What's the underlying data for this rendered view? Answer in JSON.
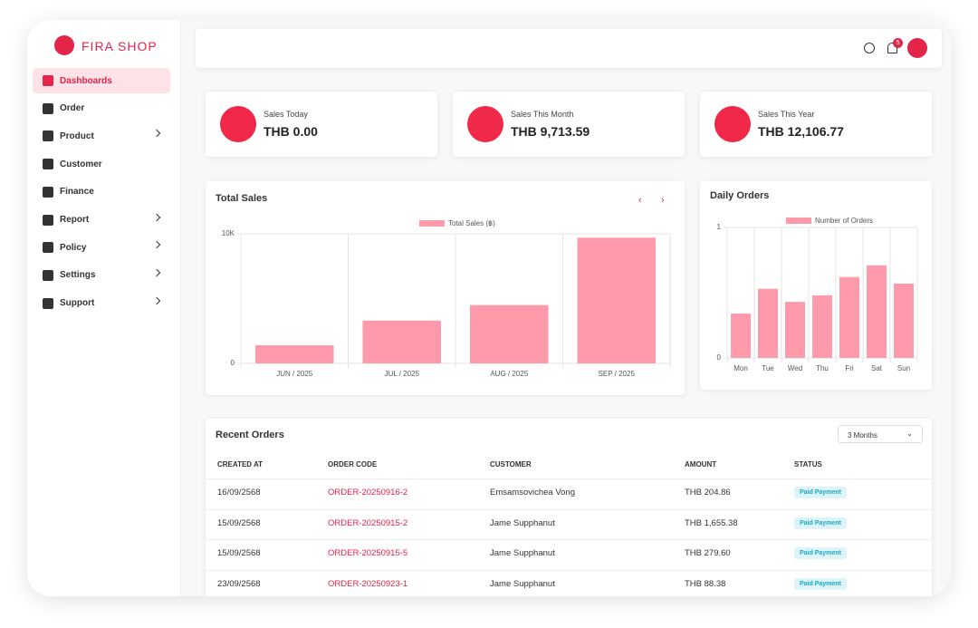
{
  "brand": "FIRA SHOP",
  "menu": [
    "Dashboards",
    "Order",
    "Product",
    "Customer",
    "Finance",
    "Report",
    "Policy",
    "Settings",
    "Support"
  ],
  "header": {
    "notification_count": "5"
  },
  "stats": [
    {
      "label": "Sales Today",
      "value": "THB 0.00"
    },
    {
      "label": "Sales This Month",
      "value": "THB 9,713.59"
    },
    {
      "label": "Sales This Year",
      "value": "THB 12,106.77"
    }
  ],
  "chart_data": [
    {
      "type": "bar",
      "title": "Total Sales",
      "categories": [
        "JUN / 2025",
        "JUL / 2025",
        "AUG / 2025",
        "SEP / 2025"
      ],
      "series": [
        {
          "name": "Total Sales (฿)",
          "color": "#ff9aaa",
          "values": [
            1400,
            3300,
            4500,
            9700
          ]
        }
      ],
      "ylim": [
        0,
        10000
      ],
      "yticks": [
        0,
        {
          "value": 10000,
          "label": "10K"
        }
      ],
      "grid": true
    },
    {
      "type": "bar",
      "title": "Daily Orders",
      "categories": [
        "Mon",
        "Tue",
        "Wed",
        "Thu",
        "Fri",
        "Sat",
        "Sun"
      ],
      "series": [
        {
          "name": "Number of Orders",
          "color": "#ff9aaa",
          "values": [
            0.34,
            0.53,
            0.43,
            0.48,
            0.62,
            0.71,
            0.57
          ]
        }
      ],
      "ylim": [
        0,
        1
      ],
      "yticks": [
        0,
        1
      ],
      "grid": true
    }
  ],
  "recent_orders": {
    "title": "Recent Orders",
    "filter": "3 Months",
    "columns": [
      "CREATED AT",
      "ORDER CODE",
      "CUSTOMER",
      "AMOUNT",
      "STATUS"
    ],
    "rows": [
      [
        "16/09/2568",
        "ORDER-20250916-2",
        "Emsamsovichea Vong",
        "THB 204.86",
        "Paid Payment"
      ],
      [
        "15/09/2568",
        "ORDER-20250915-2",
        "Jame Supphanut",
        "THB 1,655.38",
        "Paid Payment"
      ],
      [
        "15/09/2568",
        "ORDER-20250915-5",
        "Jame Supphanut",
        "THB 279.60",
        "Paid Payment"
      ],
      [
        "23/09/2568",
        "ORDER-20250923-1",
        "Jame Supphanut",
        "THB 88.38",
        "Paid Payment"
      ]
    ]
  }
}
